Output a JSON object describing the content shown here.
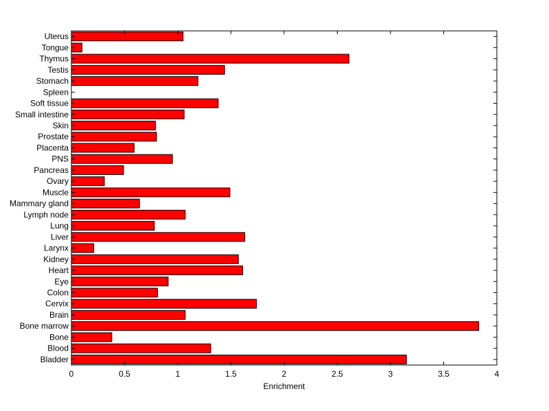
{
  "chart_data": {
    "type": "bar",
    "orientation": "horizontal",
    "xlabel": "Enrichment",
    "ylabel": "",
    "title": "",
    "xlim": [
      0,
      4
    ],
    "xticks": [
      0,
      0.5,
      1,
      1.5,
      2,
      2.5,
      3,
      3.5,
      4
    ],
    "xtick_labels": [
      "0",
      "0.5",
      "1",
      "1.5",
      "2",
      "2.5",
      "3",
      "3.5",
      "4"
    ],
    "bar_color": "#ff0000",
    "bar_edge_color": "#000000",
    "grid": false,
    "categories": [
      "Bladder",
      "Blood",
      "Bone",
      "Bone marrow",
      "Brain",
      "Cervix",
      "Colon",
      "Eye",
      "Heart",
      "Kidney",
      "Larynx",
      "Liver",
      "Lung",
      "Lymph node",
      "Mammary gland",
      "Muscle",
      "Ovary",
      "Pancreas",
      "PNS",
      "Placenta",
      "Prostate",
      "Skin",
      "Small intestine",
      "Soft tissue",
      "Spleen",
      "Stomach",
      "Testis",
      "Thymus",
      "Tongue",
      "Uterus"
    ],
    "values": [
      3.15,
      1.31,
      0.38,
      3.83,
      1.07,
      1.74,
      0.81,
      0.91,
      1.61,
      1.57,
      0.21,
      1.63,
      0.78,
      1.07,
      0.64,
      1.49,
      0.31,
      0.49,
      0.95,
      0.59,
      0.8,
      0.79,
      1.06,
      1.38,
      0.0,
      1.19,
      1.44,
      2.61,
      0.1,
      1.05
    ]
  }
}
